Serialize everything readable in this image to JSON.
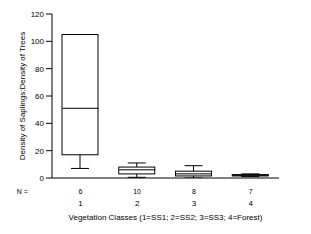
{
  "chart_data": {
    "type": "box",
    "categories": [
      "1",
      "2",
      "3",
      "4"
    ],
    "n_label": "N =",
    "n": [
      6,
      10,
      8,
      7
    ],
    "min": [
      7,
      0.5,
      0,
      1
    ],
    "q1": [
      17,
      3,
      1.5,
      1.5
    ],
    "median": [
      51,
      6,
      3,
      2
    ],
    "q3": [
      105,
      8,
      5,
      2.5
    ],
    "max": [
      105,
      11,
      9,
      3
    ],
    "color": "#000000",
    "x_label": "Vegetation Classes (1=SS1; 2=SS2; 3=SS3; 4=Forest)",
    "y_label": "Density of Saplings:Density of Trees",
    "ylim": [
      0,
      120
    ],
    "yticks": [
      0,
      20,
      40,
      60,
      80,
      100,
      120
    ]
  }
}
